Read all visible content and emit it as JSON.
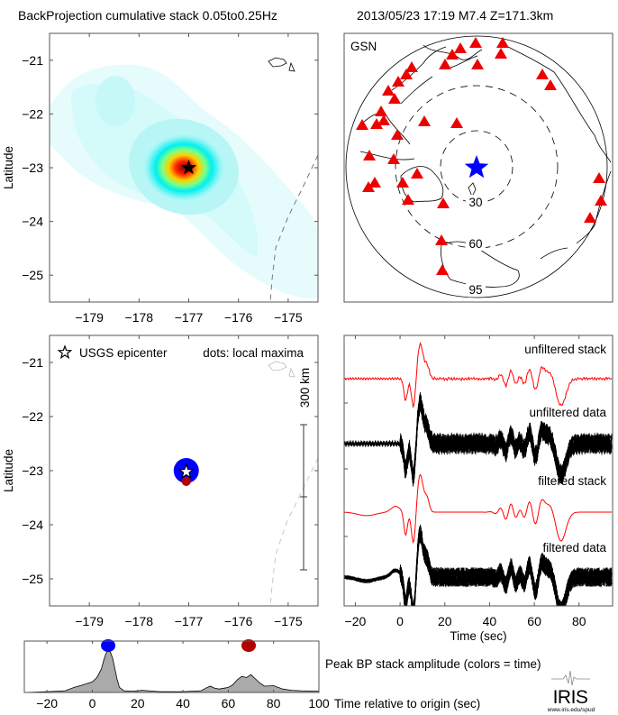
{
  "header": {
    "left_title": "BackProjection cumulative stack 0.05to0.25Hz",
    "right_title": "2013/05/23 17:19  M7.4  Z=171.3km"
  },
  "colors": {
    "stack_red": "#ff0000",
    "data_black": "#000000",
    "station_red": "#ee0000",
    "epicenter_blue": "#0000ff",
    "late_maxima": "#b00000",
    "fill_gray": "#aaaaaa"
  },
  "chart_data": [
    {
      "type": "heatmap",
      "name": "cumulative-stack-map",
      "xlabel": "",
      "ylabel": "Latitude",
      "xlim": [
        -179.8,
        -174.4
      ],
      "ylim": [
        -25.5,
        -20.5
      ],
      "xticks": [
        "−179",
        "−178",
        "−177",
        "−176",
        "−175"
      ],
      "xtick_values": [
        -179,
        -178,
        -177,
        -176,
        -175
      ],
      "yticks": [
        "−21",
        "−22",
        "−23",
        "−24",
        "−25"
      ],
      "ytick_values": [
        -21,
        -22,
        -23,
        -24,
        -25
      ],
      "peak": {
        "lon": -177.0,
        "lat": -23.0
      },
      "epicenter": {
        "lon": -177.0,
        "lat": -23.0
      }
    },
    {
      "type": "scatter",
      "name": "station-map",
      "label": "GSN",
      "distance_rings": [
        "30",
        "60",
        "95"
      ],
      "stations_count": 34
    },
    {
      "type": "scatter",
      "name": "local-maxima-map",
      "ylabel": "Latitude",
      "xlim": [
        -179.8,
        -174.4
      ],
      "ylim": [
        -25.5,
        -20.5
      ],
      "xticks": [
        "−179",
        "−178",
        "−177",
        "−176",
        "−175"
      ],
      "xtick_values": [
        -179,
        -178,
        -177,
        -176,
        -175
      ],
      "yticks": [
        "−21",
        "−22",
        "−23",
        "−24",
        "−25"
      ],
      "ytick_values": [
        -21,
        -22,
        -23,
        -24,
        -25
      ],
      "legend_star": "USGS epicenter",
      "legend_dots": "dots: local maxima",
      "scale_label": "300 km",
      "maxima": [
        {
          "lon": -177.05,
          "lat": -23.0,
          "time": 7,
          "color": "#0000ff",
          "size": "large"
        },
        {
          "lon": -177.05,
          "lat": -23.2,
          "time": 69,
          "color": "#b00000",
          "size": "small"
        }
      ],
      "epicenter": {
        "lon": -177.05,
        "lat": -23.02
      }
    },
    {
      "type": "line",
      "name": "waveforms",
      "xlabel": "Time (sec)",
      "xlim": [
        -25,
        95
      ],
      "xticks": [
        "−20",
        "0",
        "20",
        "40",
        "60",
        "80"
      ],
      "xtick_values": [
        -20,
        0,
        20,
        40,
        60,
        80
      ],
      "traces": [
        {
          "label": "unfiltered stack",
          "color": "#ff0000"
        },
        {
          "label": "unfiltered data",
          "color": "#000000"
        },
        {
          "label": "filtered stack",
          "color": "#ff0000"
        },
        {
          "label": "filtered data",
          "color": "#000000"
        }
      ]
    },
    {
      "type": "area",
      "name": "peak-amplitude",
      "title": "Peak BP stack amplitude (colors = time)",
      "xlabel": "Time relative to origin (sec)",
      "xlim": [
        -30,
        100
      ],
      "ylim": [
        0,
        1
      ],
      "xticks": [
        "−20",
        "0",
        "20",
        "40",
        "60",
        "80",
        "100"
      ],
      "xtick_values": [
        -20,
        0,
        20,
        40,
        60,
        80,
        100
      ],
      "x": [
        -30,
        -20,
        -12,
        -8,
        -4,
        0,
        2,
        4,
        5,
        6,
        7,
        8,
        9,
        10,
        11,
        12,
        14,
        18,
        22,
        30,
        40,
        48,
        50,
        52,
        54,
        56,
        58,
        60,
        62,
        64,
        66,
        68,
        70,
        72,
        74,
        76,
        80,
        84,
        88,
        92,
        100
      ],
      "y": [
        0.0,
        0.02,
        0.04,
        0.12,
        0.18,
        0.25,
        0.35,
        0.55,
        0.75,
        0.92,
        1.0,
        0.95,
        0.8,
        0.55,
        0.3,
        0.12,
        0.04,
        0.03,
        0.05,
        0.02,
        0.02,
        0.04,
        0.1,
        0.15,
        0.1,
        0.08,
        0.1,
        0.12,
        0.18,
        0.3,
        0.38,
        0.35,
        0.42,
        0.32,
        0.22,
        0.15,
        0.16,
        0.08,
        0.05,
        0.04,
        0.03
      ],
      "markers": [
        {
          "time": 7,
          "color": "#0000ff"
        },
        {
          "time": 69,
          "color": "#b00000"
        }
      ]
    }
  ],
  "logo": {
    "text": "IRIS",
    "url_text": "www.iris.edu/spud"
  }
}
